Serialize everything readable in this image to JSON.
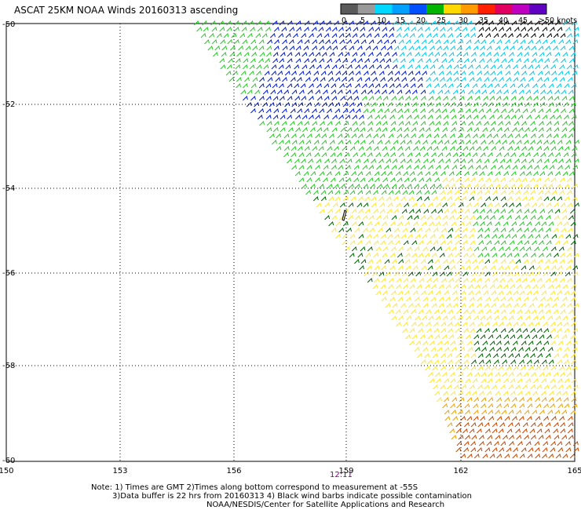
{
  "title": "ASCAT 25KM NOAA Winds 20160313 ascending",
  "wind_scale": {
    "labels": [
      "0",
      "5",
      "10",
      "15",
      "20",
      "25",
      "30",
      "35",
      "40",
      "45",
      ">50 knots"
    ],
    "colors": [
      "#5a5a5a",
      "#9a9a9a",
      "#00d8ff",
      "#00a0ff",
      "#0050ff",
      "#00b400",
      "#ffd800",
      "#ff9a00",
      "#ff2000",
      "#e00060",
      "#c000c0",
      "#6000c0"
    ]
  },
  "axes": {
    "lon_labels": [
      "150",
      "153",
      "156",
      "159",
      "162",
      "165"
    ],
    "lat_labels": [
      "-50",
      "-52",
      "-54",
      "-56",
      "-58",
      "-60"
    ]
  },
  "time_label": "12:11",
  "notes": {
    "line1": "Note: 1) Times are GMT 2)Times along bottom correspond to measurement at -55S",
    "line2": "3)Data buffer is 22 hrs from 20160313 4) Black wind barbs indicate possible contamination",
    "line3": "NOAA/NESDIS/Center for Satellite Applications and Research"
  },
  "colors": {
    "barb_cyan": "#00c8f0",
    "barb_blue": "#0018c8",
    "barb_green": "#28c828",
    "barb_darkgreen": "#006400",
    "barb_yellow": "#ffe632",
    "barb_orange": "#f0a000",
    "barb_brown": "#c84600",
    "barb_black": "#000000"
  }
}
